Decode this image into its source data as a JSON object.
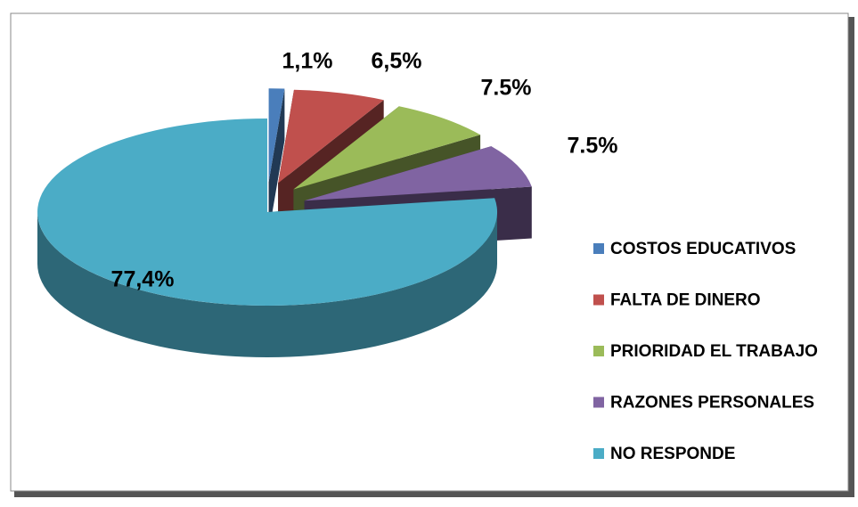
{
  "chart_data": {
    "type": "pie",
    "categories": [
      "COSTOS EDUCATIVOS",
      "FALTA DE DINERO",
      "PRIORIDAD EL TRABAJO",
      "RAZONES PERSONALES",
      "NO RESPONDE"
    ],
    "values": [
      1.1,
      6.5,
      7.5,
      7.5,
      77.4
    ],
    "value_labels": [
      "1,1%",
      "6,5%",
      "7.5%",
      "7.5%",
      "77,4%"
    ],
    "colors": [
      "#4a7ebb",
      "#c0504d",
      "#9bbb59",
      "#8064a2",
      "#4bacc6"
    ],
    "legend": "right"
  }
}
